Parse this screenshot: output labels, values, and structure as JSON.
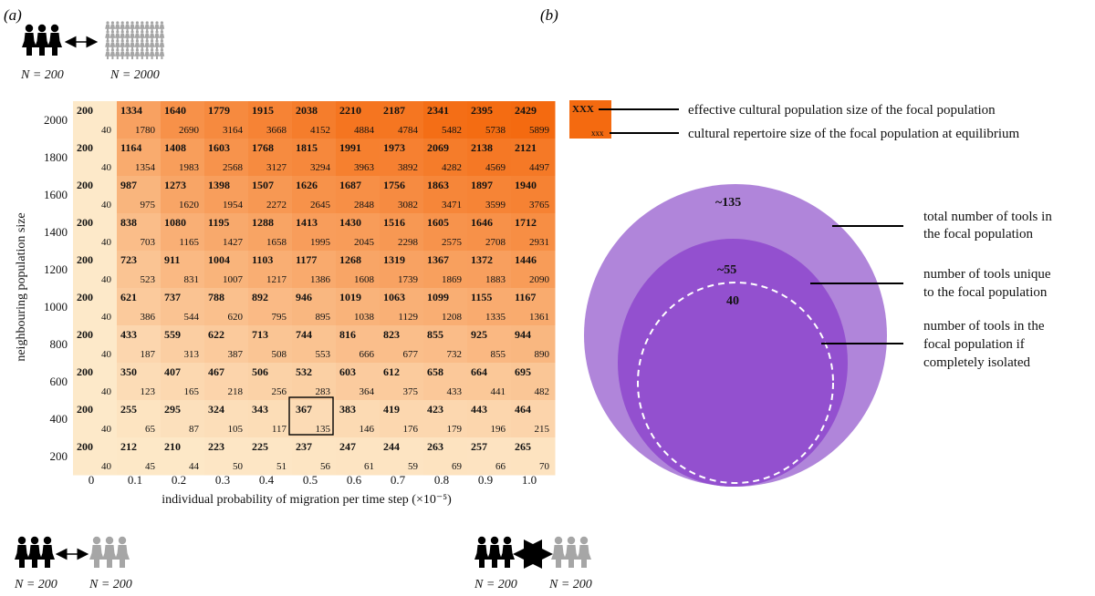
{
  "panel_a": {
    "letter": "(a)",
    "focal_label": "N = 200",
    "neighbour_large_label": "N = 2000",
    "neighbour_small_label": "N = 200"
  },
  "panel_b": {
    "letter": "(b)",
    "legend_big": "XXX",
    "legend_small": "xxx",
    "legend_big_text": "effective cultural population size of the focal population",
    "legend_small_text": "cultural repertoire size of the focal population at equilibrium",
    "outer_value": "~135",
    "middle_value": "~55",
    "inner_value": "40",
    "outer_label": [
      "total number of tools in",
      "the focal population"
    ],
    "middle_label": [
      "number of tools unique",
      "to the focal population"
    ],
    "inner_label": [
      "number of tools in the",
      "focal population if",
      "completely isolated"
    ],
    "bottom_left_label": "N = 200",
    "bottom_right_label": "N = 200"
  },
  "colors": {
    "low": "#fde9c9",
    "high": "#f46a10",
    "outer_circle": "#b085da",
    "middle_circle": "#9350cf",
    "highlight_box": "#000000"
  },
  "chart_data": {
    "type": "heatmap",
    "xlabel": "individual probability of migration per time step (×10⁻⁵)",
    "ylabel": "neighbouring population size",
    "x_ticks": [
      "0",
      "0.1",
      "0.2",
      "0.3",
      "0.4",
      "0.5",
      "0.6",
      "0.7",
      "0.8",
      "0.9",
      "1.0"
    ],
    "y_ticks": [
      "2000",
      "1800",
      "1600",
      "1400",
      "1200",
      "1000",
      "800",
      "600",
      "400",
      "200"
    ],
    "x": [
      0,
      0.1,
      0.2,
      0.3,
      0.4,
      0.5,
      0.6,
      0.7,
      0.8,
      0.9,
      1.0
    ],
    "y": [
      2000,
      1800,
      1600,
      1400,
      1200,
      1000,
      800,
      600,
      400,
      200
    ],
    "effective_population_size": [
      [
        200,
        1334,
        1640,
        1779,
        1915,
        2038,
        2210,
        2187,
        2341,
        2395,
        2429
      ],
      [
        200,
        1164,
        1408,
        1603,
        1768,
        1815,
        1991,
        1973,
        2069,
        2138,
        2121
      ],
      [
        200,
        987,
        1273,
        1398,
        1507,
        1626,
        1687,
        1756,
        1863,
        1897,
        1940
      ],
      [
        200,
        838,
        1080,
        1195,
        1288,
        1413,
        1430,
        1516,
        1605,
        1646,
        1712
      ],
      [
        200,
        723,
        911,
        1004,
        1103,
        1177,
        1268,
        1319,
        1367,
        1372,
        1446
      ],
      [
        200,
        621,
        737,
        788,
        892,
        946,
        1019,
        1063,
        1099,
        1155,
        1167
      ],
      [
        200,
        433,
        559,
        622,
        713,
        744,
        816,
        823,
        855,
        925,
        944
      ],
      [
        200,
        350,
        407,
        467,
        506,
        532,
        603,
        612,
        658,
        664,
        695
      ],
      [
        200,
        255,
        295,
        324,
        343,
        367,
        383,
        419,
        423,
        443,
        464
      ],
      [
        200,
        212,
        210,
        223,
        225,
        237,
        247,
        244,
        263,
        257,
        265
      ]
    ],
    "repertoire_size": [
      [
        40,
        1780,
        2690,
        3164,
        3668,
        4152,
        4884,
        4784,
        5482,
        5738,
        5899
      ],
      [
        40,
        1354,
        1983,
        2568,
        3127,
        3294,
        3963,
        3892,
        4282,
        4569,
        4497
      ],
      [
        40,
        975,
        1620,
        1954,
        2272,
        2645,
        2848,
        3082,
        3471,
        3599,
        3765
      ],
      [
        40,
        703,
        1165,
        1427,
        1658,
        1995,
        2045,
        2298,
        2575,
        2708,
        2931
      ],
      [
        40,
        523,
        831,
        1007,
        1217,
        1386,
        1608,
        1739,
        1869,
        1883,
        2090
      ],
      [
        40,
        386,
        544,
        620,
        795,
        895,
        1038,
        1129,
        1208,
        1335,
        1361
      ],
      [
        40,
        187,
        313,
        387,
        508,
        553,
        666,
        677,
        732,
        855,
        890
      ],
      [
        40,
        123,
        165,
        218,
        256,
        283,
        364,
        375,
        433,
        441,
        482
      ],
      [
        40,
        65,
        87,
        105,
        117,
        135,
        146,
        176,
        179,
        196,
        215
      ],
      [
        40,
        45,
        44,
        50,
        51,
        56,
        61,
        59,
        69,
        66,
        70
      ]
    ],
    "highlight": {
      "x": 0.5,
      "y": 400
    }
  }
}
